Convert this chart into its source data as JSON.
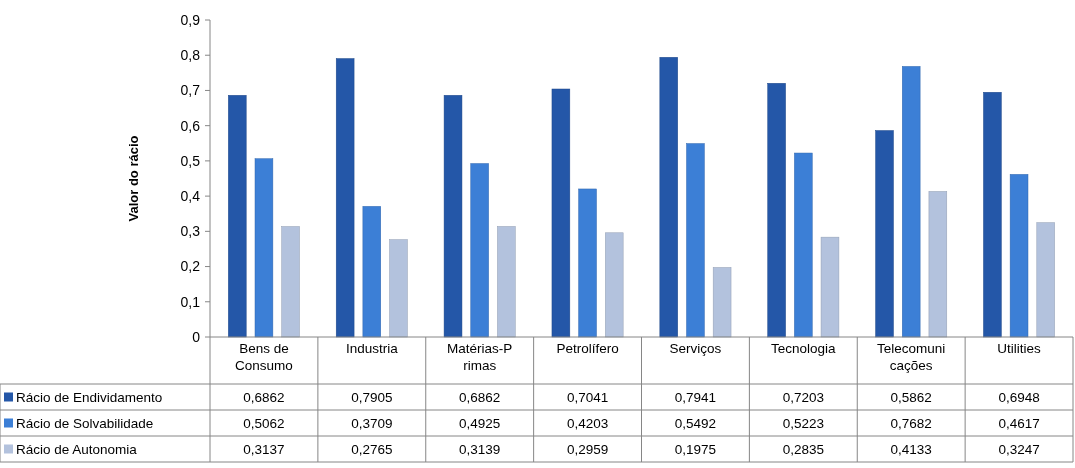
{
  "chart_data": {
    "type": "bar",
    "ylabel": "Valor do rácio",
    "categories": [
      "Bens de Consumo",
      "Industria",
      "Matérias-Primas",
      "Petrolífero",
      "Serviços",
      "Tecnologia",
      "Telecomunicações",
      "Utilities"
    ],
    "series": [
      {
        "name": "Rácio de Endividamento",
        "color": "#2457a8",
        "values": [
          0.6862,
          0.7905,
          0.6862,
          0.7041,
          0.7941,
          0.7203,
          0.5862,
          0.6948
        ],
        "value_labels": [
          "0,6862",
          "0,7905",
          "0,6862",
          "0,7041",
          "0,7941",
          "0,7203",
          "0,5862",
          "0,6948"
        ]
      },
      {
        "name": "Rácio de Solvabilidade",
        "color": "#3c7fd6",
        "values": [
          0.5062,
          0.3709,
          0.4925,
          0.4203,
          0.5492,
          0.5223,
          0.7682,
          0.4617
        ],
        "value_labels": [
          "0,5062",
          "0,3709",
          "0,4925",
          "0,4203",
          "0,5492",
          "0,5223",
          "0,7682",
          "0,4617"
        ]
      },
      {
        "name": "Rácio de Autonomia",
        "color": "#b3c2dd",
        "values": [
          0.3137,
          0.2765,
          0.3139,
          0.2959,
          0.1975,
          0.2835,
          0.4133,
          0.3247
        ],
        "value_labels": [
          "0,3137",
          "0,2765",
          "0,3139",
          "0,2959",
          "0,1975",
          "0,2835",
          "0,4133",
          "0,3247"
        ]
      }
    ],
    "ylim": [
      0,
      0.9
    ],
    "yticks": [
      {
        "value": 0,
        "label": "0"
      },
      {
        "value": 0.1,
        "label": "0,1"
      },
      {
        "value": 0.2,
        "label": "0,2"
      },
      {
        "value": 0.3,
        "label": "0,3"
      },
      {
        "value": 0.4,
        "label": "0,4"
      },
      {
        "value": 0.5,
        "label": "0,5"
      },
      {
        "value": 0.6,
        "label": "0,6"
      },
      {
        "value": 0.7,
        "label": "0,7"
      },
      {
        "value": 0.8,
        "label": "0,8"
      },
      {
        "value": 0.9,
        "label": "0,9"
      }
    ],
    "grid": false,
    "legend": "bottom left"
  }
}
